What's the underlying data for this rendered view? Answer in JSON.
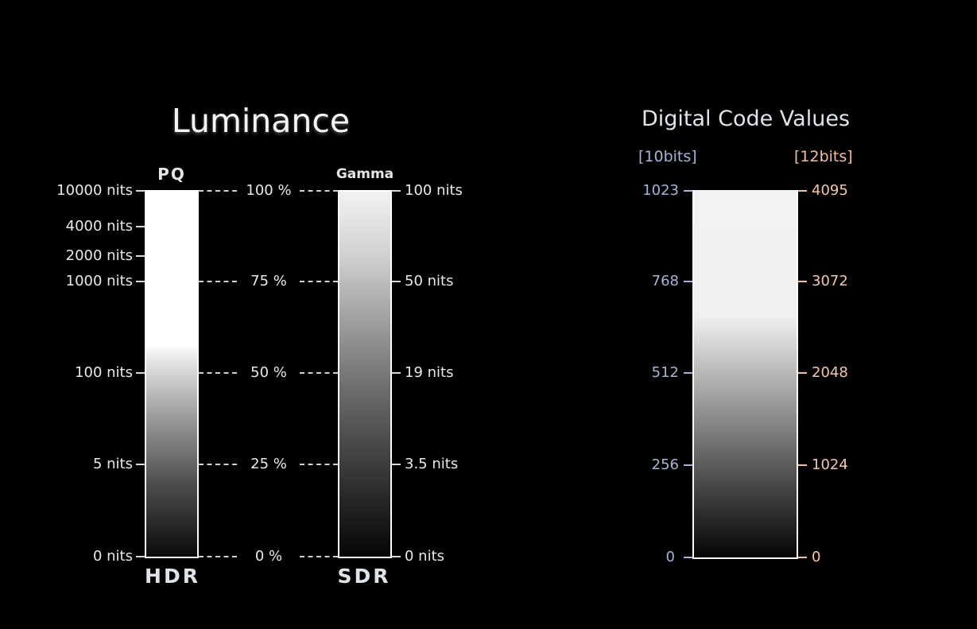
{
  "titles": {
    "luminance": "Luminance",
    "digital_code_values": "Digital Code Values"
  },
  "pq_scale": {
    "top_caption": "PQ",
    "bottom_caption": "HDR",
    "labels": [
      "10000 nits",
      "4000 nits",
      "2000 nits",
      "1000 nits",
      "100 nits",
      "5 nits",
      "0 nits"
    ]
  },
  "percent_scale": {
    "labels": [
      "100 %",
      "75 %",
      "50 %",
      "25 %",
      "0 %"
    ]
  },
  "gamma_scale": {
    "top_caption": "Gamma",
    "bottom_caption": "SDR",
    "labels": [
      "100 nits",
      "50 nits",
      "19 nits",
      "3.5 nits",
      "0 nits"
    ]
  },
  "code_values": {
    "left_header": "[10bits]",
    "right_header": "[12bits]",
    "bits10": [
      "1023",
      "768",
      "512",
      "256",
      "0"
    ],
    "bits12": [
      "4095",
      "3072",
      "2048",
      "1024",
      "0"
    ]
  },
  "colors": {
    "background": "#000000",
    "bits10": "#a8b4d6",
    "bits12": "#f3c8a8"
  }
}
